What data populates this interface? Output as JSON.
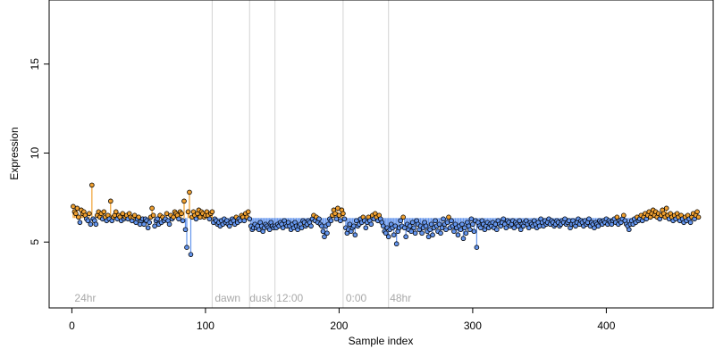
{
  "chart_data": {
    "type": "scatter",
    "title": "",
    "xlabel": "Sample index",
    "ylabel": "Expression",
    "xlim": [
      -17,
      480
    ],
    "ylim": [
      1.3,
      18.6
    ],
    "xticks": [
      0,
      100,
      200,
      300,
      400
    ],
    "yticks": [
      5,
      10,
      15
    ],
    "grid": false,
    "legend": "none",
    "baseline": 6.35,
    "colors": {
      "above": "#f0a030",
      "below": "#6495ed",
      "point_stroke": "#000000",
      "vline": "#d3d3d3",
      "vline_label": "#a9a9a9"
    },
    "markers": [
      {
        "x": 105,
        "label": ""
      },
      {
        "x": 133,
        "label": ""
      },
      {
        "x": 152,
        "label": ""
      },
      {
        "x": 203,
        "label": ""
      },
      {
        "x": 237,
        "label": ""
      }
    ],
    "marker_labels": [
      {
        "x": 2,
        "label": "24hr"
      },
      {
        "x": 107,
        "label": "dawn"
      },
      {
        "x": 133,
        "label": "dusk"
      },
      {
        "x": 153,
        "label": "12:00"
      },
      {
        "x": 205,
        "label": "0:00"
      },
      {
        "x": 238,
        "label": "48hr"
      }
    ],
    "series": [
      {
        "x_start": 1,
        "values": [
          7.0,
          6.7,
          6.6,
          6.9,
          6.4,
          6.1,
          6.8,
          6.6,
          6.7,
          6.5,
          6.3,
          6.2,
          6.6,
          6.0,
          8.2,
          6.3,
          6.2,
          6.0,
          6.5,
          6.7,
          6.4,
          6.6,
          6.3,
          6.7,
          6.4,
          6.2,
          6.5,
          6.3,
          7.3,
          6.2,
          6.4,
          6.5,
          6.7,
          6.3,
          6.5,
          6.4,
          6.2,
          6.6,
          6.3,
          6.4,
          6.5,
          6.3,
          6.6,
          6.4,
          6.2,
          6.4,
          6.5,
          6.1,
          6.3,
          6.4,
          6.0,
          6.2,
          6.3,
          6.0,
          6.3,
          6.2,
          5.8,
          6.1,
          6.4,
          6.9,
          6.5,
          5.9,
          6.2,
          6.3,
          6.0,
          6.5,
          6.1,
          6.4,
          6.2,
          6.3,
          6.6,
          6.2,
          6.0,
          6.5,
          6.3,
          6.4,
          6.7,
          6.6,
          6.5,
          6.3,
          6.7,
          6.6,
          6.2,
          7.3,
          5.7,
          4.7,
          6.7,
          7.8,
          4.3,
          6.4,
          6.7,
          6.5,
          6.3,
          6.6,
          6.8,
          6.4,
          6.7,
          6.6,
          6.4,
          6.5,
          6.7,
          6.5,
          6.3,
          6.6,
          6.7,
          6.1,
          6.3,
          6.2,
          6.0,
          6.1,
          5.9,
          6.2,
          6.0,
          6.3,
          6.1,
          6.2,
          6.0,
          5.9,
          6.1,
          6.3,
          6.2,
          6.0,
          6.4,
          6.1,
          6.3,
          6.2,
          6.5,
          6.4,
          6.2,
          6.6,
          6.4,
          6.7,
          6.3,
          5.9,
          5.7,
          5.8,
          6.0,
          5.8,
          5.9,
          5.7,
          6.1,
          5.9,
          5.6,
          5.8,
          6.0,
          5.9,
          5.8,
          5.7,
          6.1,
          5.9,
          5.8,
          5.9,
          5.8,
          6.0,
          5.9,
          6.1,
          6.0,
          5.8,
          6.2,
          6.0,
          5.9,
          6.1,
          5.9,
          5.7,
          6.0,
          5.8,
          6.1,
          5.9,
          5.7,
          5.9,
          6.0,
          5.8,
          6.2,
          6.1,
          5.9,
          6.0,
          6.2,
          6.1,
          5.9,
          6.3,
          6.5,
          6.2,
          6.4,
          6.1,
          6.3,
          6.0,
          5.9,
          5.6,
          5.3,
          5.9,
          5.5,
          6.0,
          6.3,
          6.2,
          6.5,
          6.8,
          6.6,
          6.3,
          6.9,
          6.5,
          6.2,
          6.8,
          6.6,
          6.3,
          5.8,
          5.5,
          5.7,
          6.0,
          5.6,
          5.8,
          5.9,
          5.4,
          6.2,
          5.9,
          6.0,
          6.3,
          6.1,
          6.4,
          6.2,
          5.8,
          6.1,
          6.4,
          6.2,
          6.0,
          6.5,
          6.3,
          6.6,
          6.4,
          6.2,
          6.5,
          6.3,
          6.1,
          5.9,
          5.6,
          5.5,
          5.8,
          5.3,
          5.7,
          6.0,
          5.8,
          5.4,
          5.9,
          4.9,
          5.6,
          5.8,
          6.2,
          5.9,
          6.4,
          5.8,
          5.3,
          6.0,
          5.7,
          5.9,
          5.6,
          6.1,
          5.8,
          5.5,
          6.2,
          6.0,
          5.7,
          5.9,
          5.5,
          5.8,
          6.1,
          5.9,
          5.6,
          5.3,
          5.7,
          6.0,
          5.4,
          5.8,
          6.2,
          5.9,
          5.6,
          6.0,
          5.5,
          5.8,
          6.3,
          6.0,
          5.7,
          6.1,
          6.4,
          5.8,
          6.2,
          5.9,
          5.6,
          6.0,
          5.8,
          5.4,
          5.9,
          5.7,
          6.0,
          5.2,
          5.8,
          5.5,
          6.1,
          5.9,
          5.7,
          6.3,
          6.0,
          5.6,
          6.2,
          4.7,
          6.1,
          5.9,
          5.8,
          6.2,
          6.0,
          5.7,
          5.9,
          6.1,
          5.8,
          6.0,
          5.9,
          6.1,
          5.8,
          6.0,
          5.7,
          6.2,
          6.0,
          5.9,
          6.1,
          6.3,
          6.0,
          5.8,
          6.2,
          6.1,
          5.9,
          6.0,
          6.2,
          5.8,
          6.1,
          6.0,
          5.9,
          6.2,
          5.7,
          6.0,
          5.9,
          6.1,
          6.2,
          6.0,
          5.8,
          6.1,
          6.0,
          5.9,
          6.2,
          6.0,
          5.8,
          6.1,
          5.9,
          6.3,
          6.1,
          5.9,
          6.2,
          6.0,
          6.1,
          6.3,
          6.0,
          6.2,
          6.1,
          5.9,
          6.0,
          6.2,
          6.1,
          5.9,
          6.0,
          6.2,
          6.1,
          6.3,
          6.0,
          6.1,
          6.2,
          5.8,
          6.0,
          6.2,
          6.0,
          5.9,
          6.1,
          6.3,
          6.0,
          6.2,
          6.1,
          5.9,
          6.2,
          6.0,
          6.1,
          6.3,
          5.9,
          6.1,
          6.0,
          5.8,
          6.1,
          6.0,
          5.9,
          6.2,
          6.1,
          6.0,
          6.2,
          6.1,
          6.3,
          6.0,
          6.2,
          6.1,
          6.0,
          6.2,
          6.3,
          6.1,
          6.4,
          6.0,
          6.2,
          6.1,
          6.3,
          6.5,
          6.2,
          6.0,
          5.9,
          5.7,
          6.0,
          6.2,
          6.0,
          6.3,
          6.1,
          6.4,
          6.2,
          6.3,
          6.5,
          6.2,
          6.4,
          6.6,
          6.3,
          6.5,
          6.7,
          6.4,
          6.6,
          6.8,
          6.5,
          6.7,
          6.4,
          6.6,
          6.3,
          6.5,
          6.8,
          6.6,
          6.4,
          6.9,
          6.5,
          6.3,
          6.6,
          6.4,
          6.2,
          6.5,
          6.3,
          6.6,
          6.4,
          6.2,
          6.5,
          6.3,
          6.1,
          6.4,
          6.2,
          6.5,
          6.3,
          6.1,
          6.4,
          6.6,
          6.3,
          6.5,
          6.7,
          6.4
        ]
      }
    ]
  }
}
